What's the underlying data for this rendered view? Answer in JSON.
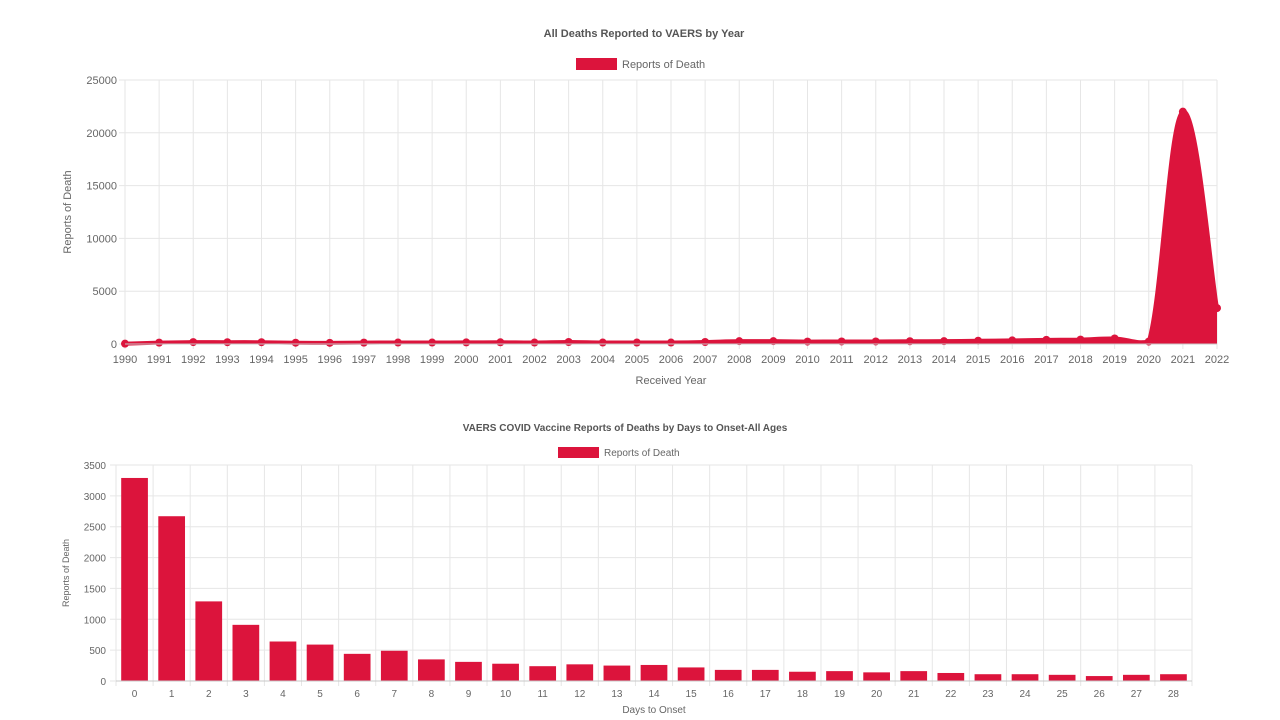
{
  "colors": {
    "accent": "#dc143c",
    "grid": "#e6e6e6",
    "text": "#666666",
    "title": "#555555"
  },
  "chart_data": [
    {
      "type": "area",
      "title": "All Deaths Reported to VAERS by Year",
      "legend": "Reports of Death",
      "legend_position": "top-center",
      "xlabel": "Received Year",
      "ylabel": "Reports of Death",
      "ylim": [
        0,
        25000
      ],
      "yticks": [
        0,
        5000,
        10000,
        15000,
        20000,
        25000
      ],
      "grid": true,
      "x": [
        "1990",
        "1991",
        "1992",
        "1993",
        "1994",
        "1995",
        "1996",
        "1997",
        "1998",
        "1999",
        "2000",
        "2001",
        "2002",
        "2003",
        "2004",
        "2005",
        "2006",
        "2007",
        "2008",
        "2009",
        "2010",
        "2011",
        "2012",
        "2013",
        "2014",
        "2015",
        "2016",
        "2017",
        "2018",
        "2019",
        "2020",
        "2021",
        "2022"
      ],
      "values": [
        30,
        130,
        180,
        170,
        170,
        120,
        110,
        130,
        140,
        140,
        150,
        160,
        140,
        190,
        140,
        140,
        140,
        190,
        270,
        270,
        230,
        240,
        240,
        260,
        270,
        310,
        340,
        390,
        420,
        520,
        230,
        22000,
        3400
      ]
    },
    {
      "type": "bar",
      "title": "VAERS COVID Vaccine Reports of Deaths by Days to Onset-All Ages",
      "legend": "Reports of Death",
      "legend_position": "top-center",
      "xlabel": "Days to Onset",
      "ylabel": "Reports of Death",
      "ylim": [
        0,
        3500
      ],
      "yticks": [
        0,
        500,
        1000,
        1500,
        2000,
        2500,
        3000,
        3500
      ],
      "grid": true,
      "categories": [
        "0",
        "1",
        "2",
        "3",
        "4",
        "5",
        "6",
        "7",
        "8",
        "9",
        "10",
        "11",
        "12",
        "13",
        "14",
        "15",
        "16",
        "17",
        "18",
        "19",
        "20",
        "21",
        "22",
        "23",
        "24",
        "25",
        "26",
        "27",
        "28"
      ],
      "values": [
        3290,
        2670,
        1290,
        910,
        640,
        590,
        440,
        490,
        350,
        310,
        280,
        240,
        270,
        250,
        260,
        220,
        180,
        180,
        150,
        160,
        140,
        160,
        130,
        110,
        110,
        100,
        80,
        100,
        110
      ]
    }
  ]
}
